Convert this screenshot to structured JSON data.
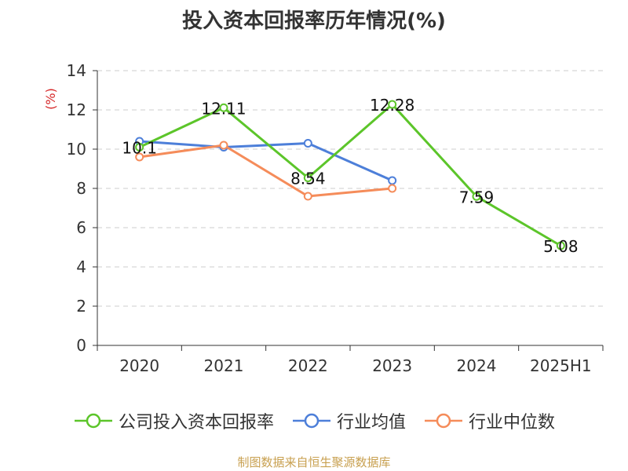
{
  "chart_data": {
    "type": "line",
    "title": "投入资本回报率历年情况(%)",
    "ylabel": "(%)",
    "xlabel": "",
    "categories": [
      "2020",
      "2021",
      "2022",
      "2023",
      "2024",
      "2025H1"
    ],
    "ylim": [
      0,
      14
    ],
    "yticks": [
      0,
      2,
      4,
      6,
      8,
      10,
      12,
      14
    ],
    "grid": true,
    "legend_position": "bottom",
    "series": [
      {
        "name": "公司投入资本回报率",
        "color": "#5cc52a",
        "values": [
          10.1,
          12.11,
          8.54,
          12.28,
          7.59,
          5.08
        ],
        "labels": [
          "10.1",
          "12.11",
          "8.54",
          "12.28",
          "7.59",
          "5.08"
        ]
      },
      {
        "name": "行业均值",
        "color": "#4d7fd9",
        "values": [
          10.4,
          10.1,
          10.3,
          8.4,
          null,
          null
        ]
      },
      {
        "name": "行业中位数",
        "color": "#f58c5a",
        "values": [
          9.6,
          10.2,
          7.6,
          8.0,
          null,
          null
        ]
      }
    ]
  },
  "source": "制图数据来自恒生聚源数据库"
}
